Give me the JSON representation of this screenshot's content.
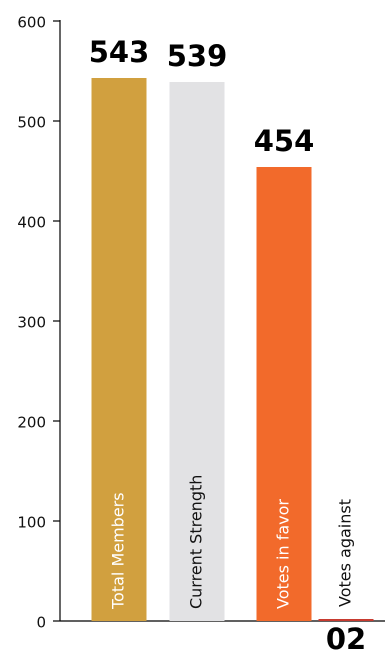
{
  "chart_data": {
    "type": "bar",
    "categories": [
      "Total Members",
      "Current Strength",
      "Votes in favor",
      "Votes against"
    ],
    "values": [
      543,
      539,
      454,
      2
    ],
    "value_labels": [
      "543",
      "539",
      "454",
      "02"
    ],
    "colors": [
      "#d1a03f",
      "#e2e2e4",
      "#f26a2b",
      "#c73a2f"
    ],
    "ylim": [
      0,
      600
    ],
    "yticks": [
      0,
      100,
      200,
      300,
      400,
      500,
      600
    ],
    "grid": false
  }
}
